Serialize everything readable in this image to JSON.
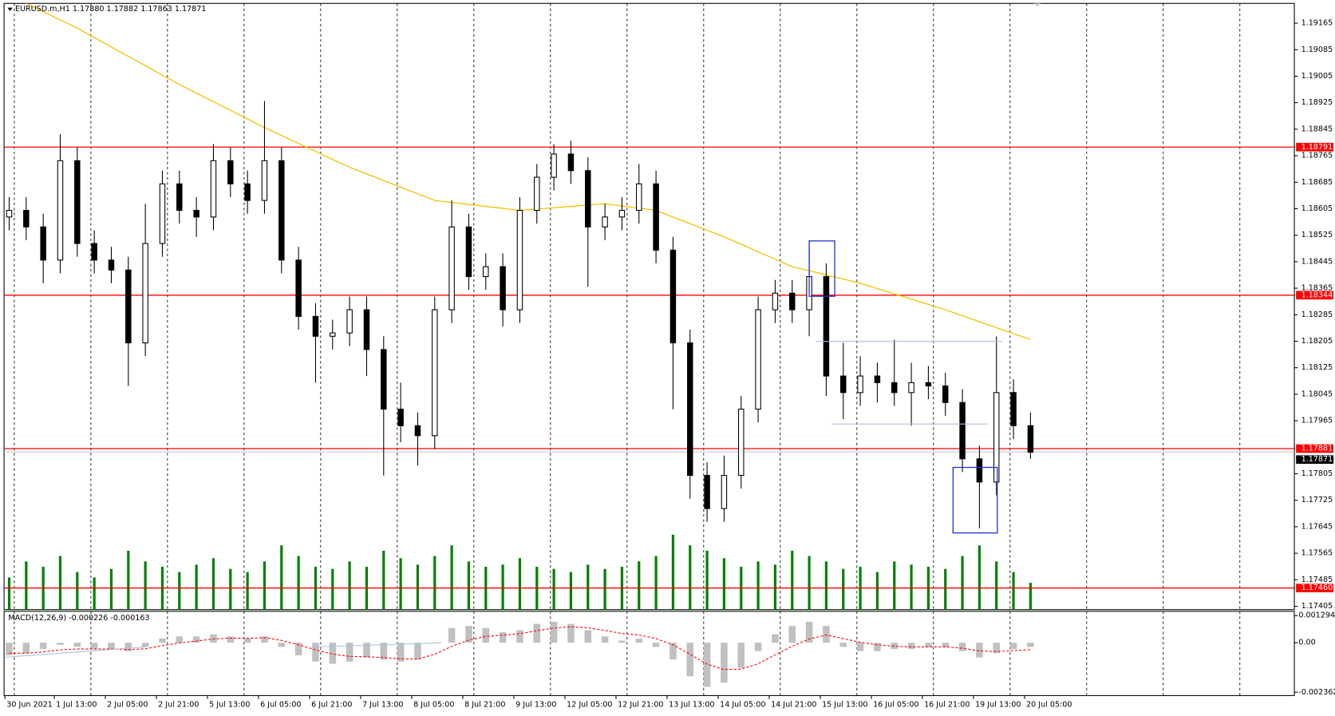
{
  "chart_data": {
    "type": "candlestick",
    "title": "EURUSD.m,H1  1.17880 1.17882 1.17863 1.17871",
    "xlim": [
      -0.5,
      75.5
    ],
    "xticks": [
      {
        "value": -0.25,
        "label": "30 Jun 2021"
      },
      {
        "value": 2.65,
        "label": "1 Jul 13:00"
      },
      {
        "value": 5.65,
        "label": "2 Jul 05:00"
      },
      {
        "value": 8.65,
        "label": "2 Jul 21:00"
      },
      {
        "value": 11.65,
        "label": "5 Jul 13:00"
      },
      {
        "value": 14.65,
        "label": "6 Jul 05:00"
      },
      {
        "value": 17.65,
        "label": "6 Jul 21:00"
      },
      {
        "value": 20.65,
        "label": "7 Jul 13:00"
      },
      {
        "value": 23.65,
        "label": "8 Jul 05:00"
      },
      {
        "value": 26.65,
        "label": "8 Jul 21:00"
      },
      {
        "value": 29.65,
        "label": "9 Jul 13:00"
      },
      {
        "value": 32.65,
        "label": "12 Jul 05:00"
      },
      {
        "value": 35.65,
        "label": "12 Jul 21:00"
      },
      {
        "value": 38.65,
        "label": "13 Jul 13:00"
      },
      {
        "value": 41.65,
        "label": "14 Jul 05:00"
      },
      {
        "value": 44.65,
        "label": "14 Jul 21:00"
      },
      {
        "value": 47.65,
        "label": "15 Jul 13:00"
      },
      {
        "value": 50.65,
        "label": "16 Jul 05:00"
      },
      {
        "value": 53.65,
        "label": "16 Jul 21:00"
      },
      {
        "value": 56.65,
        "label": "19 Jul 13:00"
      },
      {
        "value": 59.65,
        "label": "20 Jul 05:00"
      }
    ],
    "ylim": [
      1.17395,
      1.19235
    ],
    "yticks": [
      1.19165,
      1.19085,
      1.19005,
      1.18925,
      1.18845,
      1.18765,
      1.18685,
      1.18605,
      1.18525,
      1.18445,
      1.18365,
      1.18285,
      1.18205,
      1.18125,
      1.18045,
      1.17965,
      1.17805,
      1.17725,
      1.17645,
      1.17565,
      1.17485,
      1.17405
    ],
    "grid": true,
    "ohlc": [
      [
        1.1858,
        1.1864,
        1.1854,
        1.186
      ],
      [
        1.186,
        1.1864,
        1.1851,
        1.1855
      ],
      [
        1.1855,
        1.1859,
        1.1838,
        1.1845
      ],
      [
        1.1845,
        1.1883,
        1.1841,
        1.1875
      ],
      [
        1.1875,
        1.1879,
        1.1846,
        1.185
      ],
      [
        1.185,
        1.1854,
        1.1841,
        1.1845
      ],
      [
        1.1845,
        1.1849,
        1.1838,
        1.1842
      ],
      [
        1.1842,
        1.1846,
        1.1807,
        1.182
      ],
      [
        1.182,
        1.1862,
        1.1816,
        1.185
      ],
      [
        1.185,
        1.1872,
        1.1846,
        1.1868
      ],
      [
        1.1868,
        1.1872,
        1.1856,
        1.186
      ],
      [
        1.186,
        1.1864,
        1.1852,
        1.1858
      ],
      [
        1.1858,
        1.188,
        1.1854,
        1.1875
      ],
      [
        1.1875,
        1.1879,
        1.1864,
        1.1868
      ],
      [
        1.1868,
        1.1872,
        1.1859,
        1.1863
      ],
      [
        1.1863,
        1.1893,
        1.1859,
        1.1875
      ],
      [
        1.1875,
        1.1879,
        1.1841,
        1.1845
      ],
      [
        1.1845,
        1.1849,
        1.1824,
        1.1828
      ],
      [
        1.1828,
        1.1832,
        1.1808,
        1.1822
      ],
      [
        1.1822,
        1.1827,
        1.1818,
        1.1823
      ],
      [
        1.1823,
        1.1834,
        1.1819,
        1.183
      ],
      [
        1.183,
        1.1834,
        1.181,
        1.1818
      ],
      [
        1.1818,
        1.1822,
        1.178,
        1.18
      ],
      [
        1.18,
        1.1808,
        1.179,
        1.1795
      ],
      [
        1.1795,
        1.1799,
        1.1783,
        1.1792
      ],
      [
        1.1792,
        1.1834,
        1.1788,
        1.183
      ],
      [
        1.183,
        1.1863,
        1.1826,
        1.1855
      ],
      [
        1.1855,
        1.1859,
        1.1836,
        1.184
      ],
      [
        1.184,
        1.1847,
        1.1836,
        1.1843
      ],
      [
        1.1843,
        1.1847,
        1.1825,
        1.183
      ],
      [
        1.183,
        1.1864,
        1.1826,
        1.186
      ],
      [
        1.186,
        1.1874,
        1.1856,
        1.187
      ],
      [
        1.187,
        1.188,
        1.1866,
        1.1877
      ],
      [
        1.1877,
        1.1881,
        1.1868,
        1.1872
      ],
      [
        1.1872,
        1.1876,
        1.1837,
        1.1855
      ],
      [
        1.1855,
        1.1862,
        1.1851,
        1.1858
      ],
      [
        1.1858,
        1.1864,
        1.1854,
        1.186
      ],
      [
        1.186,
        1.1874,
        1.1856,
        1.1868
      ],
      [
        1.1868,
        1.1872,
        1.1844,
        1.1848
      ],
      [
        1.1848,
        1.1852,
        1.18,
        1.182
      ],
      [
        1.182,
        1.1824,
        1.1773,
        1.178
      ],
      [
        1.178,
        1.1784,
        1.1766,
        1.177
      ],
      [
        1.177,
        1.1786,
        1.1766,
        1.178
      ],
      [
        1.178,
        1.1804,
        1.1776,
        1.18
      ],
      [
        1.18,
        1.1834,
        1.1796,
        1.183
      ],
      [
        1.183,
        1.1839,
        1.1826,
        1.1835
      ],
      [
        1.1835,
        1.1839,
        1.1826,
        1.183
      ],
      [
        1.183,
        1.1851,
        1.1822,
        1.184
      ],
      [
        1.184,
        1.1844,
        1.1804,
        1.181
      ],
      [
        1.181,
        1.182,
        1.1797,
        1.1805
      ],
      [
        1.1805,
        1.1816,
        1.1801,
        1.181
      ],
      [
        1.181,
        1.1814,
        1.1802,
        1.1808
      ],
      [
        1.1808,
        1.1821,
        1.1801,
        1.1805
      ],
      [
        1.1805,
        1.1814,
        1.1795,
        1.1808
      ],
      [
        1.1808,
        1.1813,
        1.1803,
        1.1807
      ],
      [
        1.1807,
        1.1811,
        1.1798,
        1.1802
      ],
      [
        1.1802,
        1.1806,
        1.1781,
        1.1785
      ],
      [
        1.1785,
        1.1789,
        1.1764,
        1.1778
      ],
      [
        1.1778,
        1.1822,
        1.1774,
        1.1805
      ],
      [
        1.1805,
        1.1809,
        1.1791,
        1.1795
      ],
      [
        1.1795,
        1.1799,
        1.1785,
        1.1787
      ]
    ],
    "bull_color": "#ffffff",
    "bear_color": "#000000",
    "ma": {
      "color": "#f2c200",
      "values": [
        1.1925,
        1.19225,
        1.192,
        1.19175,
        1.1915,
        1.19122,
        1.19093,
        1.19065,
        1.19037,
        1.19008,
        1.1898,
        1.18954,
        1.18928,
        1.18902,
        1.18876,
        1.1885,
        1.18826,
        1.18802,
        1.18778,
        1.18754,
        1.1873,
        1.1871,
        1.1869,
        1.1867,
        1.1865,
        1.1863,
        1.18624,
        1.18618,
        1.18612,
        1.18606,
        1.186,
        1.18604,
        1.18608,
        1.18612,
        1.18616,
        1.1862,
        1.18613,
        1.18607,
        1.186,
        1.1858,
        1.1856,
        1.1854,
        1.1852,
        1.18498,
        1.18475,
        1.18453,
        1.1843,
        1.18418,
        1.18405,
        1.18393,
        1.1838,
        1.18364,
        1.18348,
        1.18332,
        1.18316,
        1.183,
        1.18282,
        1.18264,
        1.18246,
        1.18228,
        1.1821
      ]
    },
    "volume": {
      "color": "#008000",
      "values": [
        30,
        45,
        40,
        50,
        35,
        30,
        38,
        55,
        45,
        40,
        35,
        42,
        48,
        38,
        35,
        45,
        60,
        50,
        40,
        38,
        45,
        40,
        55,
        48,
        42,
        50,
        60,
        45,
        40,
        42,
        48,
        40,
        38,
        35,
        42,
        38,
        40,
        45,
        50,
        70,
        60,
        55,
        48,
        40,
        45,
        42,
        55,
        50,
        45,
        38,
        40,
        35,
        45,
        42,
        40,
        38,
        50,
        60,
        45,
        35,
        25
      ]
    },
    "levels": {
      "color": "#ff0000",
      "values": [
        1.18791,
        1.18344,
        1.17881,
        1.1746
      ],
      "value_labels": [
        "1.18791",
        "1.18344",
        "1.17881",
        "1.17460"
      ]
    },
    "last_price": 1.17871,
    "macd": {
      "label": "MACD(12,26,9) -0.000226 -0.000163",
      "y2lim": [
        -0.00252,
        0.0015
      ],
      "y2ticks": [
        0.001294,
        {
          "value": 0,
          "label": "0.00"
        },
        -0.002362
      ],
      "histogram": {
        "color": "#c0c0c0",
        "axis": "y2",
        "values": [
          -0.0006,
          -0.0005,
          -0.0003,
          -0.0001,
          -0.0002,
          -0.0003,
          -0.0003,
          -0.0004,
          -0.0002,
          0.0002,
          0.0003,
          0.0003,
          0.0004,
          0.0003,
          0.0002,
          0.0003,
          -0.0002,
          -0.0006,
          -0.0009,
          -0.001,
          -0.0009,
          -0.0007,
          -0.0008,
          -0.0009,
          -0.0008,
          0,
          0.0007,
          0.0008,
          0.0007,
          0.0005,
          0.0006,
          0.0009,
          0.001,
          0.0009,
          0.0006,
          0.0003,
          0.0001,
          0.0002,
          -0.0002,
          -0.0008,
          -0.0016,
          -0.0021,
          -0.0019,
          -0.0012,
          -0.0004,
          0.0004,
          0.0008,
          0.001,
          0.0008,
          -0.0002,
          -0.0004,
          -0.0004,
          -0.0003,
          -0.0003,
          -0.0002,
          -0.0002,
          -0.0004,
          -0.0007,
          -0.0005,
          -0.0003,
          -0.0002
        ]
      },
      "signal": {
        "color": "#ff0000",
        "axis": "y2",
        "values": [
          -0.0005,
          -0.0005,
          -0.00044,
          -0.00034,
          -0.0003,
          -0.0003,
          -0.0003,
          -0.00033,
          -0.00029,
          -0.00014,
          -1e-05,
          8e-05,
          0.00018,
          0.00022,
          0.00021,
          0.00024,
          0.00011,
          -0.0001,
          -0.00034,
          -0.00054,
          -0.00065,
          -0.00067,
          -0.00071,
          -0.00077,
          -0.00078,
          -0.00055,
          -0.00017,
          0.00012,
          0.0003,
          0.00036,
          0.00043,
          0.00057,
          0.0007,
          0.00076,
          0.00071,
          0.00059,
          0.00044,
          0.00037,
          0.0002,
          -0.0001,
          -0.00055,
          -0.00102,
          -0.00128,
          -0.00126,
          -0.001,
          -0.00058,
          -0.00017,
          0.00018,
          0.00037,
          0.0002,
          2e-05,
          -0.0001,
          -0.00016,
          -0.0002,
          -0.0002,
          -0.0002,
          -0.00026,
          -0.00039,
          -0.00042,
          -0.00038,
          -0.00033
        ]
      }
    }
  }
}
